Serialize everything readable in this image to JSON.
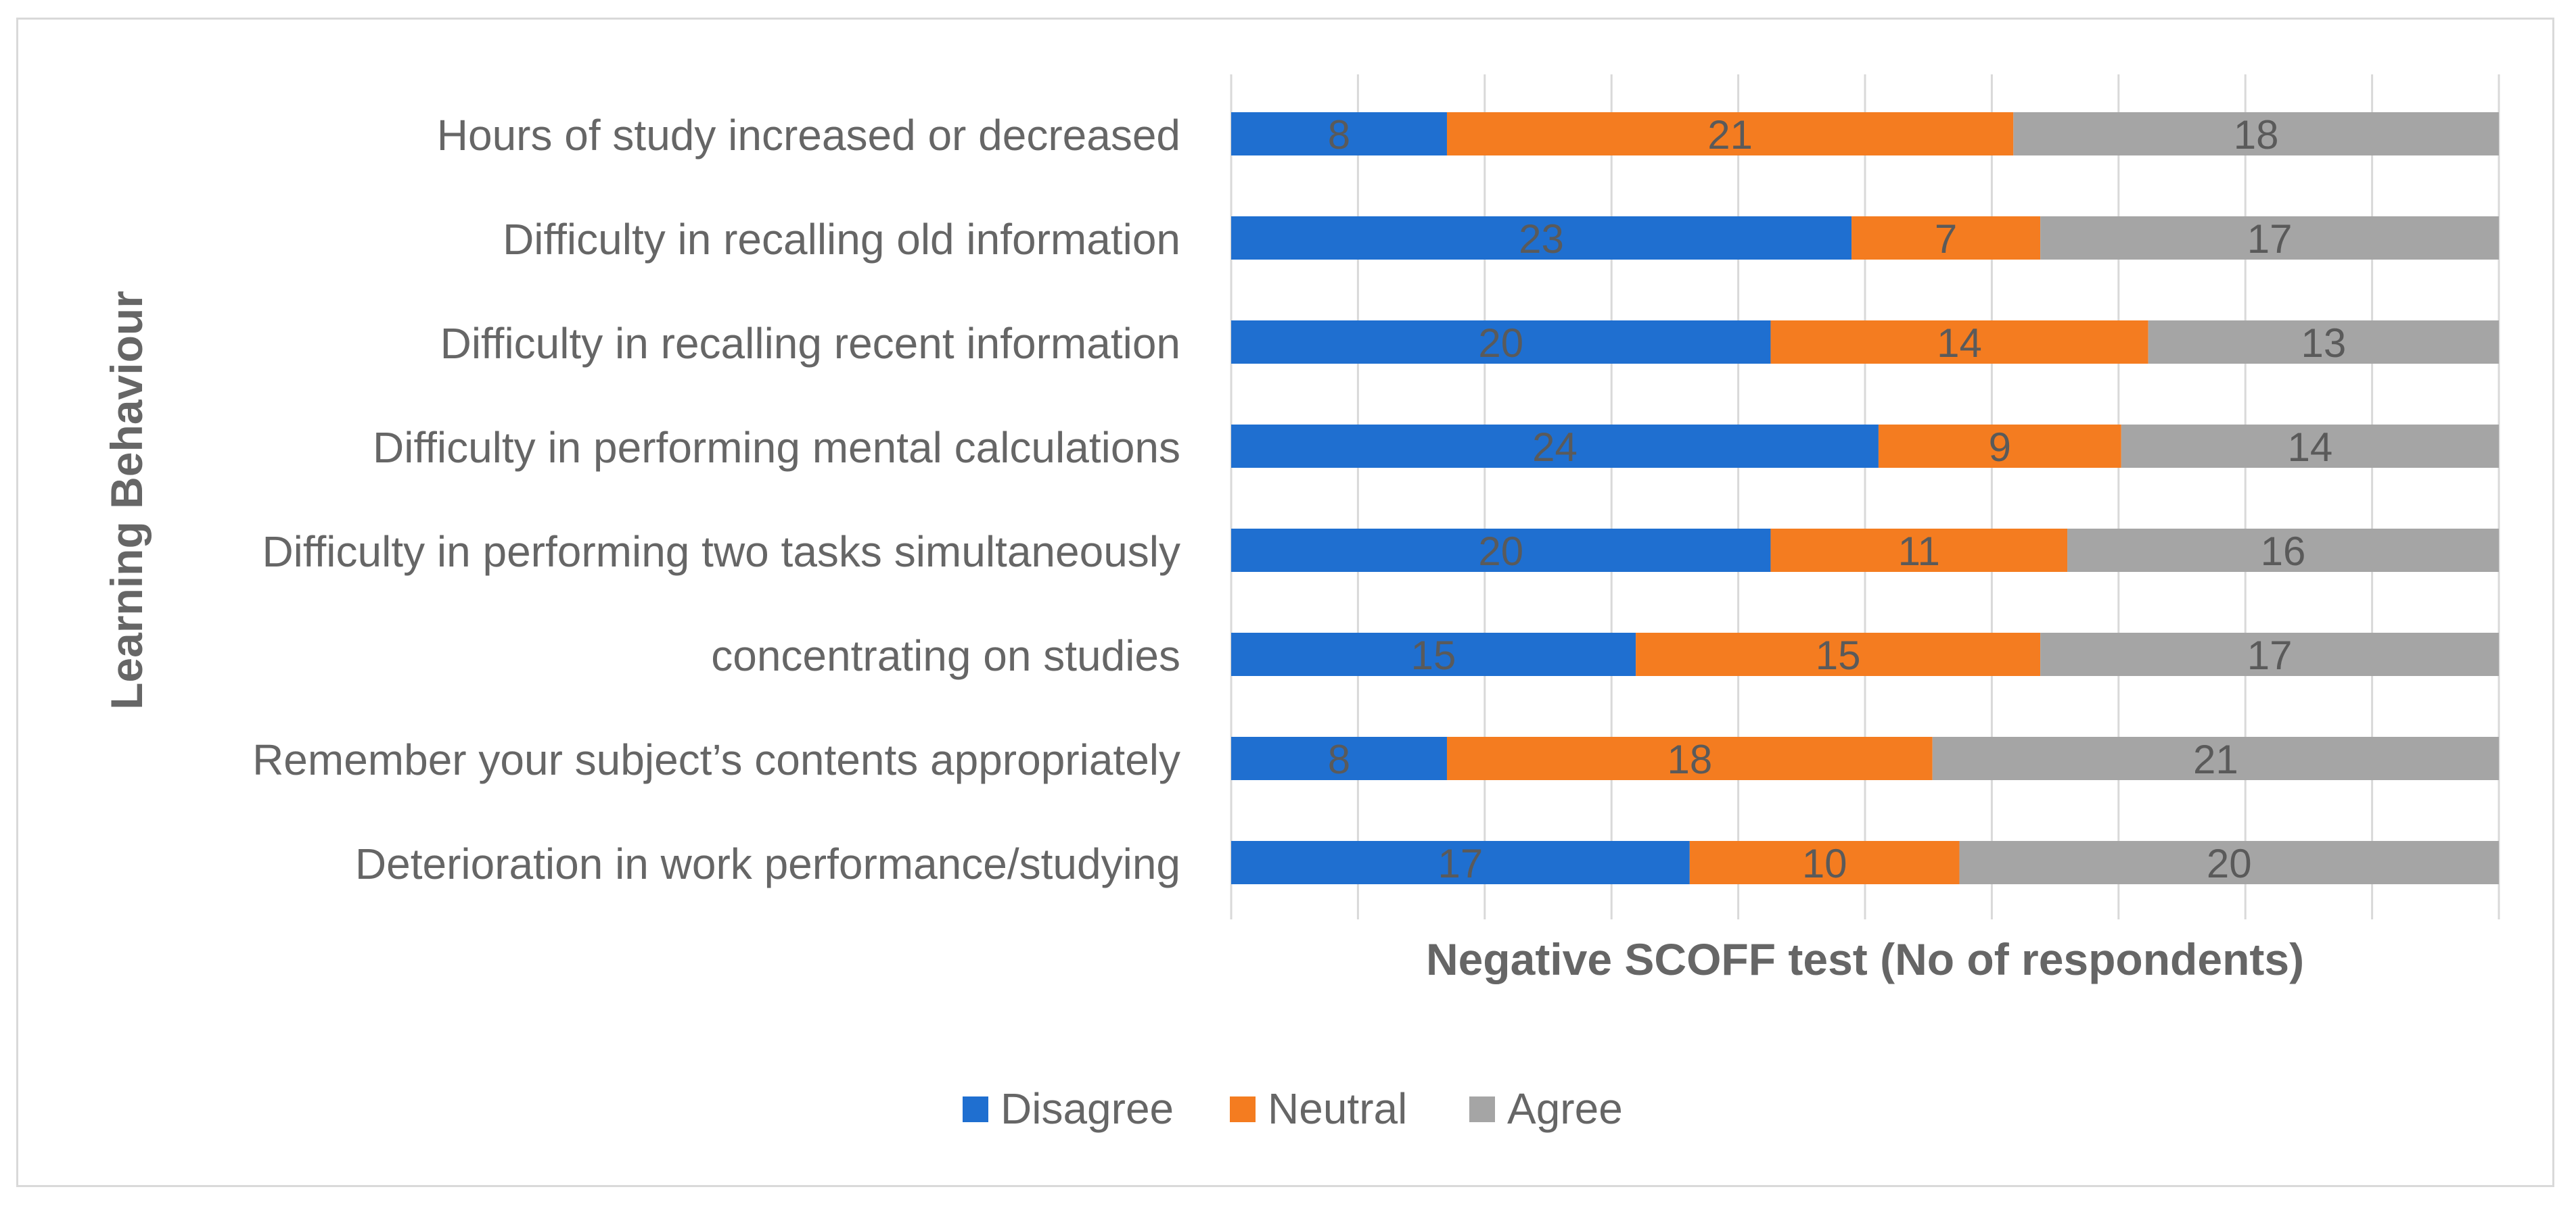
{
  "colors": {
    "disagree": "#1f6fd0",
    "neutral": "#f47c20",
    "agree": "#a5a5a5",
    "text": "#666666",
    "label_on_bar": "#5a5a5a",
    "grid": "#d9d9d9"
  },
  "chart_data": {
    "type": "bar",
    "orientation": "horizontal",
    "stacked": true,
    "title": "",
    "xlabel": "Negative SCOFF test (No of respondents)",
    "ylabel": "Learning Behaviour",
    "xlim": [
      0,
      47
    ],
    "grid": true,
    "legend_position": "bottom",
    "categories": [
      "Hours of study increased or decreased",
      "Difficulty in recalling old information",
      "Difficulty in recalling recent information",
      "Difficulty in performing mental calculations",
      "Difficulty in performing two tasks simultaneously",
      "concentrating on studies",
      "Remember your subject’s contents appropriately",
      "Deterioration in work performance/studying"
    ],
    "series": [
      {
        "name": "Disagree",
        "color_key": "disagree",
        "values": [
          8,
          23,
          20,
          24,
          20,
          15,
          8,
          17
        ]
      },
      {
        "name": "Neutral",
        "color_key": "neutral",
        "values": [
          21,
          7,
          14,
          9,
          11,
          15,
          18,
          10
        ]
      },
      {
        "name": "Agree",
        "color_key": "agree",
        "values": [
          18,
          17,
          13,
          14,
          16,
          17,
          21,
          20
        ]
      }
    ]
  }
}
